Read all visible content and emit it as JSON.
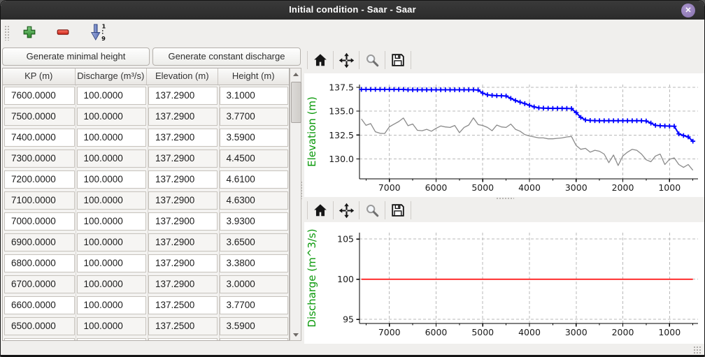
{
  "window": {
    "title": "Initial condition - Saar - Saar",
    "close_glyph": "✕"
  },
  "icons": {
    "titlebar": "close-icon",
    "toolbar": [
      "plus-icon",
      "minus-icon",
      "sort-ascending-1-9-icon"
    ],
    "nav": [
      "home-icon",
      "pan-arrows-icon",
      "magnifier-icon",
      "save-floppy-icon"
    ],
    "scrollbar": [
      "up-arrow-icon",
      "down-arrow-icon"
    ]
  },
  "colors": {
    "titlebar": "#2d2d2d",
    "close_button": "#8f7ab8",
    "accent_green": "#0a990a",
    "water_line": "#0000ff",
    "bed_line": "#8a8a8a",
    "discharge_line": "#ff0000",
    "add_icon": "#4aa64a",
    "remove_icon": "#e0301f",
    "sort_icon": "#7487c9"
  },
  "toolbar": {
    "sort_top_char": "1",
    "sort_bottom_char": "9"
  },
  "buttons": {
    "generate_minimal_height": "Generate minimal height",
    "generate_constant_discharge": "Generate constant discharge"
  },
  "table": {
    "columns": [
      "KP (m)",
      "Discharge (m³/s)",
      "Elevation (m)",
      "Height (m)"
    ],
    "rows": [
      [
        "7600.0000",
        "100.0000",
        "137.2900",
        "3.1000"
      ],
      [
        "7500.0000",
        "100.0000",
        "137.2900",
        "3.7700"
      ],
      [
        "7400.0000",
        "100.0000",
        "137.2900",
        "3.5900"
      ],
      [
        "7300.0000",
        "100.0000",
        "137.2900",
        "4.4500"
      ],
      [
        "7200.0000",
        "100.0000",
        "137.2900",
        "4.6100"
      ],
      [
        "7100.0000",
        "100.0000",
        "137.2900",
        "4.6300"
      ],
      [
        "7000.0000",
        "100.0000",
        "137.2900",
        "3.9300"
      ],
      [
        "6900.0000",
        "100.0000",
        "137.2900",
        "3.6500"
      ],
      [
        "6800.0000",
        "100.0000",
        "137.2900",
        "3.3800"
      ],
      [
        "6700.0000",
        "100.0000",
        "137.2900",
        "3.0000"
      ],
      [
        "6600.0000",
        "100.0000",
        "137.2500",
        "3.7700"
      ],
      [
        "6500.0000",
        "100.0000",
        "137.2500",
        "3.5900"
      ]
    ],
    "partial_row": [
      "",
      "",
      "",
      ""
    ]
  },
  "chart_data": [
    {
      "type": "line",
      "ylabel": "Elevation (m)",
      "ylabel_color": "#0a990a",
      "xlim": [
        7640,
        390
      ],
      "ylim": [
        127.9,
        137.8
      ],
      "xticks": [
        7000,
        6000,
        5000,
        4000,
        3000,
        2000,
        1000
      ],
      "xminor_step": 500,
      "yticks": [
        130.0,
        132.5,
        135.0,
        137.5
      ],
      "ytick_labels": [
        "130.0",
        "132.5",
        "135.0",
        "137.5"
      ],
      "grid": "dashed",
      "x": [
        7600,
        7500,
        7400,
        7300,
        7200,
        7100,
        7000,
        6900,
        6800,
        6700,
        6600,
        6500,
        6400,
        6300,
        6200,
        6100,
        6000,
        5900,
        5800,
        5700,
        5600,
        5500,
        5400,
        5300,
        5200,
        5100,
        5000,
        4900,
        4800,
        4700,
        4600,
        4500,
        4400,
        4300,
        4200,
        4100,
        4000,
        3900,
        3800,
        3700,
        3600,
        3500,
        3400,
        3300,
        3200,
        3100,
        3000,
        2900,
        2800,
        2700,
        2600,
        2500,
        2400,
        2300,
        2200,
        2100,
        2000,
        1900,
        1800,
        1700,
        1600,
        1500,
        1400,
        1300,
        1200,
        1100,
        1000,
        900,
        800,
        700,
        600,
        500
      ],
      "series": [
        {
          "name": "water-elevation",
          "color": "#0000ff",
          "width": 2,
          "marker": "+",
          "values": [
            137.29,
            137.29,
            137.29,
            137.29,
            137.29,
            137.29,
            137.29,
            137.29,
            137.29,
            137.29,
            137.25,
            137.25,
            137.25,
            137.25,
            137.25,
            137.25,
            137.25,
            137.25,
            137.25,
            137.25,
            137.25,
            137.25,
            137.25,
            137.25,
            137.25,
            137.22,
            136.9,
            136.72,
            136.66,
            136.63,
            136.62,
            136.6,
            136.35,
            136.12,
            135.95,
            135.8,
            135.62,
            135.45,
            135.35,
            135.32,
            135.31,
            135.3,
            135.3,
            135.3,
            135.29,
            135.28,
            134.85,
            134.35,
            134.08,
            134.03,
            134.01,
            134,
            134,
            134,
            134,
            134,
            134,
            134,
            134,
            134,
            134,
            133.97,
            133.75,
            133.52,
            133.47,
            133.45,
            133.44,
            133.42,
            132.62,
            132.45,
            132.3,
            131.85
          ]
        },
        {
          "name": "bed-elevation",
          "color": "#8a8a8a",
          "width": 1.3,
          "marker": null,
          "values": [
            134.19,
            133.52,
            133.7,
            132.84,
            132.68,
            132.66,
            133.36,
            133.64,
            133.91,
            134.29,
            133.48,
            133.66,
            133.0,
            132.95,
            133.1,
            132.9,
            133.2,
            133.45,
            133.35,
            133.3,
            133.5,
            132.75,
            133.3,
            133.55,
            134.3,
            133.6,
            133.5,
            133.3,
            132.95,
            133.55,
            133.35,
            133.3,
            133.65,
            133.1,
            132.9,
            132.55,
            132.4,
            132.3,
            132.2,
            132.2,
            132.1,
            132.1,
            132.15,
            132.2,
            132.3,
            132.35,
            131.4,
            131.0,
            131.1,
            130.7,
            130.9,
            130.8,
            130.5,
            129.6,
            130.4,
            129.3,
            130.3,
            130.7,
            131.0,
            130.9,
            130.5,
            129.9,
            129.7,
            130.3,
            130.5,
            129.4,
            129.95,
            130.1,
            129.4,
            129.1,
            129.4,
            128.8
          ]
        }
      ]
    },
    {
      "type": "line",
      "ylabel": "Discharge (m^3/s)",
      "ylabel_color": "#0a990a",
      "xlim": [
        7640,
        390
      ],
      "ylim": [
        94.5,
        105.8
      ],
      "xticks": [
        7000,
        6000,
        5000,
        4000,
        3000,
        2000,
        1000
      ],
      "xminor_step": 500,
      "yticks": [
        95,
        100,
        105
      ],
      "ytick_labels": [
        "95",
        "100",
        "105"
      ],
      "grid": "dashed",
      "series": [
        {
          "name": "discharge",
          "color": "#ff0000",
          "width": 1.6,
          "marker": null,
          "x": [
            7600,
            500
          ],
          "values": [
            100,
            100
          ]
        }
      ]
    }
  ]
}
